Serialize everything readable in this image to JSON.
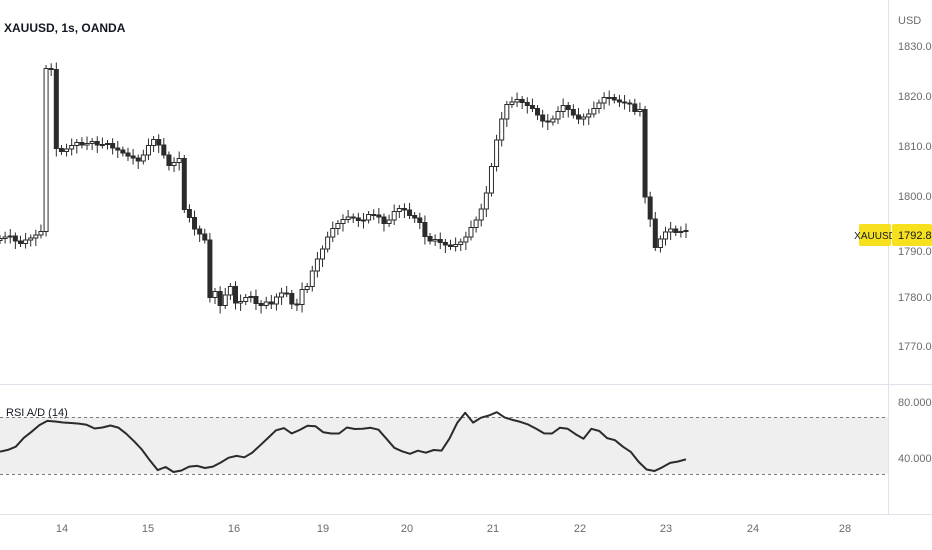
{
  "colors": {
    "candle": "#2b2b2b",
    "rsi_line": "#2b2b2b",
    "rsi_band": "#ececec",
    "oversold_fill": "#a8dca8",
    "price_tag_bg": "#f7e01e",
    "grid": "#e0e3eb",
    "axis_text": "#6b6b6b"
  },
  "header": {
    "title": "XAUUSD, 1s, OANDA"
  },
  "indicator": {
    "label": "RSI A/D (14)"
  },
  "price_axis": {
    "currency": "USD",
    "ticks": [
      "1830.000",
      "1820.000",
      "1810.000",
      "1800.000",
      "1790.000",
      "1780.000",
      "1770.000"
    ],
    "last_symbol": "XAUUSD",
    "last_price": "1792.830"
  },
  "rsi_axis": {
    "ticks": [
      "80.000",
      "40.000"
    ]
  },
  "time_axis": {
    "labels": [
      "14",
      "15",
      "16",
      "19",
      "20",
      "21",
      "22",
      "23",
      "24",
      "28"
    ]
  },
  "chart_data": [
    {
      "type": "candlestick",
      "title": "XAUUSD, 1s, OANDA",
      "ylabel": "USD",
      "ylim": [
        1764,
        1832
      ],
      "series": [
        {
          "values": [
            1791.5,
            1791.8,
            1792,
            1791,
            1790.5,
            1791.2,
            1791.6,
            1792.2,
            1792.9,
            1825.5,
            1825.3,
            1809.5,
            1808.9,
            1809.4,
            1810.1,
            1810.7,
            1810.2,
            1810.5,
            1810.9,
            1810.2,
            1810.3,
            1810.5,
            1809.6,
            1809.2,
            1808.6,
            1808,
            1807.6,
            1807,
            1808.2,
            1810.1,
            1811.3,
            1810.2,
            1808.2,
            1806.1,
            1806.7,
            1807.5,
            1797.3,
            1795.7,
            1793.4,
            1792.4,
            1791.2,
            1779.7,
            1780.9,
            1778.1,
            1780.2,
            1781.9,
            1778.6,
            1778.9,
            1779.7,
            1779.9,
            1778.5,
            1778.1,
            1778.8,
            1778.4,
            1779.8,
            1780.6,
            1780.5,
            1778.4,
            1778.3,
            1781.3,
            1781.9,
            1785,
            1787.4,
            1789.4,
            1791.8,
            1793.5,
            1794.5,
            1795.3,
            1795.8,
            1795.6,
            1795.1,
            1795.2,
            1796.3,
            1796.2,
            1795.8,
            1794.5,
            1795.2,
            1796.9,
            1797.5,
            1797.2,
            1796.1,
            1795.6,
            1794.7,
            1791.9,
            1791,
            1791.3,
            1790.7,
            1790.2,
            1789.9,
            1790.3,
            1790.8,
            1791.8,
            1793.7,
            1795.2,
            1797.4,
            1800.6,
            1805.9,
            1811.2,
            1815.4,
            1818.3,
            1818.8,
            1819.3,
            1818.7,
            1818.1,
            1817.5,
            1816.2,
            1815,
            1814.8,
            1815.4,
            1816.9,
            1818.1,
            1817.3,
            1816.2,
            1815.4,
            1815.8,
            1816.4,
            1817.5,
            1818.6,
            1819.7,
            1819.7,
            1819.2,
            1818.8,
            1818.6,
            1818.4,
            1816.9,
            1817.3,
            1799.8,
            1795.4,
            1789.7,
            1791.4,
            1792.8,
            1793.4,
            1792.7,
            1792.9,
            1793.1
          ]
        }
      ]
    },
    {
      "type": "line",
      "title": "RSI A/D (14)",
      "ylim": [
        28,
        84
      ],
      "series": [
        {
          "values": [
            45.3,
            46.5,
            48.8,
            55.1,
            59.4,
            64.2,
            67.2,
            66.8,
            66.1,
            65.7,
            65.3,
            64.4,
            61.8,
            62.5,
            63.9,
            62.4,
            58.1,
            52.7,
            46.7,
            39.1,
            32.1,
            34.3,
            30.7,
            31.8,
            34.6,
            35.1,
            33.6,
            34.6,
            37.5,
            40.9,
            42.2,
            41.2,
            44.6,
            49.8,
            55.1,
            60.5,
            62.1,
            58.3,
            60.7,
            63.7,
            63.4,
            59.1,
            58.2,
            58.2,
            62.5,
            61.4,
            61.6,
            62.3,
            60.9,
            54.5,
            48,
            45.5,
            43.7,
            45.9,
            44.5,
            46.4,
            46,
            54.5,
            65.9,
            73,
            66,
            69.5,
            71.1,
            73.4,
            69.7,
            67.9,
            66.5,
            64.6,
            61.6,
            58.3,
            58.2,
            62.3,
            61.6,
            57.7,
            54.5,
            61.6,
            60,
            54.9,
            53.4,
            48.8,
            45.1,
            37.9,
            32.5,
            31.4,
            34.1,
            37.2,
            38.2,
            39.8
          ]
        }
      ]
    }
  ]
}
